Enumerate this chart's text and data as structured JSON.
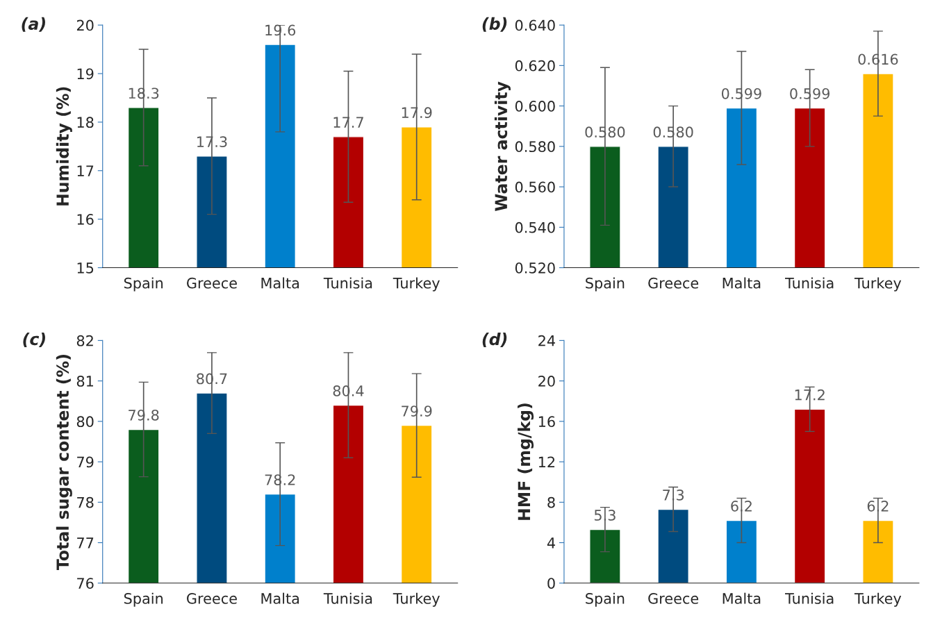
{
  "chart_data": [
    {
      "type": "bar",
      "title": "(a)",
      "ylabel": "Humidity (%)",
      "categories": [
        "Spain",
        "Greece",
        "Malta",
        "Tunisia",
        "Turkey"
      ],
      "values": [
        18.3,
        17.3,
        19.6,
        17.7,
        17.9
      ],
      "colors": [
        "#0b5d1e",
        "#004b7f",
        "#0080cc",
        "#b30000",
        "#ffbc00"
      ],
      "errors": [
        1.2,
        1.2,
        [
          17.8,
          20
        ],
        1.35,
        1.5
      ],
      "value_labels": [
        "18.3",
        "17.3",
        "19.6",
        "17.7",
        "17.9"
      ],
      "ylim": [
        15,
        20
      ],
      "yticks": [
        15,
        16,
        17,
        18,
        19,
        20
      ],
      "grid": false,
      "legend": false
    },
    {
      "type": "bar",
      "title": "(b)",
      "ylabel": "Water activity",
      "categories": [
        "Spain",
        "Greece",
        "Malta",
        "Tunisia",
        "Turkey"
      ],
      "values": [
        0.58,
        0.58,
        0.599,
        0.599,
        0.616
      ],
      "colors": [
        "#0b5d1e",
        "#004b7f",
        "#0080cc",
        "#b30000",
        "#ffbc00"
      ],
      "errors": [
        0.039,
        0.02,
        0.028,
        0.019,
        0.021
      ],
      "value_labels": [
        "0.580",
        "0.580",
        "0.599",
        "0.599",
        "0.616"
      ],
      "ylim": [
        0.52,
        0.64
      ],
      "yticks": [
        {
          "value": 0.52,
          "label": "0.520"
        },
        {
          "value": 0.54,
          "label": "0.540"
        },
        {
          "value": 0.56,
          "label": "0.560"
        },
        {
          "value": 0.58,
          "label": "0.580"
        },
        {
          "value": 0.6,
          "label": "0.600"
        },
        {
          "value": 0.62,
          "label": "0.620"
        },
        {
          "value": 0.64,
          "label": "0.640"
        }
      ],
      "grid": false,
      "legend": false
    },
    {
      "type": "bar",
      "title": "(c)",
      "ylabel": "Total sugar content (%)",
      "categories": [
        "Spain",
        "Greece",
        "Malta",
        "Tunisia",
        "Turkey"
      ],
      "values": [
        79.8,
        80.7,
        78.2,
        80.4,
        79.9
      ],
      "colors": [
        "#0b5d1e",
        "#004b7f",
        "#0080cc",
        "#b30000",
        "#ffbc00"
      ],
      "errors": [
        1.17,
        1.0,
        1.27,
        1.3,
        1.28
      ],
      "value_labels": [
        "79.8",
        "80.7",
        "78.2",
        "80.4",
        "79.9"
      ],
      "ylim": [
        76,
        82
      ],
      "yticks": [
        76,
        77,
        78,
        79,
        80,
        81,
        82
      ],
      "grid": false,
      "legend": false
    },
    {
      "type": "bar",
      "title": "(d)",
      "ylabel": "HMF (mg/kg)",
      "categories": [
        "Spain",
        "Greece",
        "Malta",
        "Tunisia",
        "Turkey"
      ],
      "values": [
        5.3,
        7.3,
        6.2,
        17.2,
        6.2
      ],
      "colors": [
        "#0b5d1e",
        "#004b7f",
        "#0080cc",
        "#b30000",
        "#ffbc00"
      ],
      "errors": [
        2.2,
        2.2,
        2.2,
        2.2,
        2.2
      ],
      "value_labels": [
        "5.3",
        "7.3",
        "6.2",
        "17.2",
        "6.2"
      ],
      "ylim": [
        0,
        24
      ],
      "yticks": [
        0,
        4,
        8,
        12,
        16,
        20,
        24
      ],
      "grid": false,
      "legend": false
    }
  ]
}
